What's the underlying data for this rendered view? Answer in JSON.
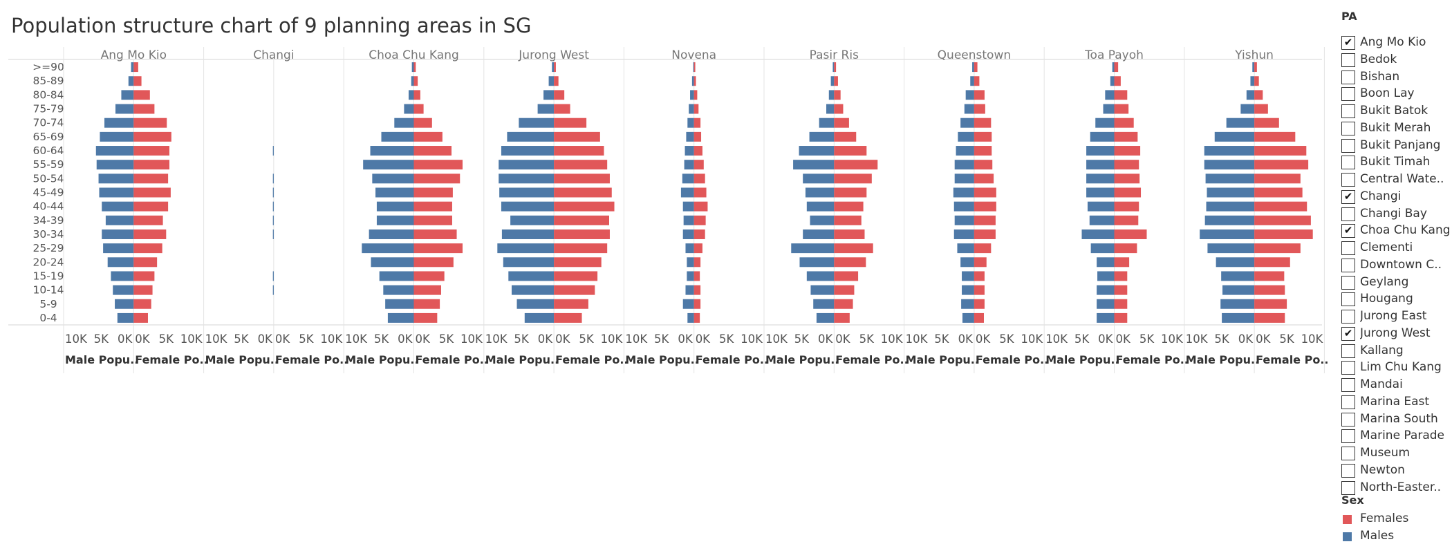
{
  "title": "Population structure chart of 9 planning areas in SG",
  "colors": {
    "male": "#4e79a7",
    "female": "#e15759"
  },
  "chart_data": {
    "type": "bar",
    "subtype": "population-pyramid",
    "title": "Population structure chart of 9 planning areas in SG",
    "age_groups": [
      ">=90",
      "85-89",
      "80-84",
      "75-79",
      "70-74",
      "65-69",
      "60-64",
      "55-59",
      "50-54",
      "45-49",
      "40-44",
      "34-39",
      "30-34",
      "25-29",
      "20-24",
      "15-19",
      "10-14",
      "5-9",
      "0-4"
    ],
    "x_ticks": [
      "10K",
      "5K",
      "0K"
    ],
    "x_ticks_right": [
      "0K",
      "5K",
      "10K"
    ],
    "xlim": [
      0,
      10000
    ],
    "male_axis_label": "Male Popu..",
    "female_axis_label": "Female Po..",
    "grid": false,
    "legend_placement": "right",
    "panels": [
      {
        "area": "Ang Mo Kio",
        "male": [
          400,
          800,
          1900,
          2800,
          4500,
          5200,
          5800,
          5700,
          5400,
          5300,
          4900,
          4300,
          4900,
          4700,
          4000,
          3500,
          3200,
          2900,
          2500
        ],
        "female": [
          700,
          1200,
          2500,
          3200,
          5100,
          5800,
          5500,
          5500,
          5300,
          5700,
          5300,
          4500,
          5000,
          4400,
          3600,
          3200,
          2900,
          2700,
          2200
        ]
      },
      {
        "area": "Changi",
        "male": [
          0,
          0,
          0,
          0,
          0,
          0,
          120,
          0,
          100,
          100,
          100,
          100,
          100,
          0,
          0,
          100,
          100,
          0,
          0
        ],
        "female": [
          0,
          0,
          0,
          0,
          0,
          0,
          0,
          0,
          0,
          0,
          0,
          0,
          0,
          0,
          0,
          0,
          0,
          0,
          0
        ]
      },
      {
        "area": "Choa Chu Kang",
        "male": [
          300,
          400,
          800,
          1500,
          3000,
          5000,
          6700,
          7800,
          6400,
          5900,
          5700,
          5700,
          6900,
          8000,
          6600,
          5300,
          4700,
          4400,
          4000
        ],
        "female": [
          300,
          600,
          1000,
          1500,
          2800,
          4400,
          5800,
          7500,
          7100,
          6000,
          5900,
          5900,
          6600,
          7500,
          6100,
          4700,
          4200,
          4000,
          3600
        ]
      },
      {
        "area": "Jurong West",
        "male": [
          300,
          800,
          1600,
          2500,
          5400,
          7200,
          8100,
          8500,
          8500,
          8400,
          8100,
          6700,
          8000,
          8700,
          7800,
          7000,
          6500,
          5700,
          4500
        ],
        "female": [
          300,
          700,
          1600,
          2500,
          5000,
          7100,
          7700,
          8200,
          8600,
          8900,
          9300,
          8500,
          8600,
          8200,
          7300,
          6700,
          6300,
          5300,
          4300
        ]
      },
      {
        "area": "Novena",
        "male": [
          100,
          300,
          600,
          800,
          1000,
          1200,
          1400,
          1500,
          1800,
          2000,
          1700,
          1600,
          1700,
          1300,
          1100,
          1100,
          1300,
          1700,
          1000
        ],
        "female": [
          200,
          300,
          500,
          700,
          1000,
          1100,
          1300,
          1500,
          1700,
          1900,
          2100,
          1800,
          1700,
          1300,
          1000,
          900,
          1000,
          1000,
          900
        ]
      },
      {
        "area": "Pasir Ris",
        "male": [
          200,
          500,
          800,
          1200,
          2300,
          3800,
          5400,
          6300,
          4800,
          4400,
          4200,
          3700,
          4800,
          6600,
          5300,
          4200,
          3600,
          3200,
          2700
        ],
        "female": [
          300,
          600,
          1000,
          1400,
          2300,
          3400,
          5000,
          6700,
          5800,
          5000,
          4500,
          4200,
          4700,
          6000,
          4900,
          3700,
          3100,
          2900,
          2400
        ]
      },
      {
        "area": "Queenstown",
        "male": [
          300,
          600,
          1300,
          1500,
          2100,
          2500,
          2800,
          3000,
          3000,
          3200,
          3100,
          3000,
          3100,
          2600,
          2100,
          1900,
          1900,
          2000,
          1800
        ],
        "female": [
          500,
          800,
          1600,
          1700,
          2600,
          2700,
          2700,
          2800,
          3000,
          3400,
          3400,
          3300,
          3300,
          2600,
          1900,
          1600,
          1600,
          1600,
          1500
        ]
      },
      {
        "area": "Toa Payoh",
        "male": [
          300,
          600,
          1400,
          1700,
          2900,
          3700,
          4300,
          4300,
          4300,
          4300,
          4100,
          3800,
          5000,
          3600,
          2700,
          2600,
          2700,
          2700,
          2700
        ],
        "female": [
          600,
          1000,
          2000,
          2200,
          3000,
          3600,
          4000,
          3800,
          3900,
          4100,
          3800,
          3700,
          5000,
          3500,
          2300,
          2000,
          2000,
          2000,
          2000
        ]
      },
      {
        "area": "Yishun",
        "male": [
          300,
          600,
          1200,
          2100,
          4300,
          6100,
          7700,
          7700,
          7500,
          7300,
          7400,
          7600,
          8400,
          7200,
          5900,
          5100,
          4900,
          5200,
          5000
        ],
        "female": [
          400,
          700,
          1300,
          2100,
          3800,
          6300,
          8000,
          8300,
          7100,
          7400,
          8100,
          8700,
          9000,
          7100,
          5500,
          4600,
          4700,
          5000,
          4700
        ]
      }
    ]
  },
  "legend": {
    "pa_title": "PA",
    "pa_items": [
      {
        "label": "Ang Mo Kio",
        "checked": true
      },
      {
        "label": "Bedok",
        "checked": false
      },
      {
        "label": "Bishan",
        "checked": false
      },
      {
        "label": "Boon Lay",
        "checked": false
      },
      {
        "label": "Bukit Batok",
        "checked": false
      },
      {
        "label": "Bukit Merah",
        "checked": false
      },
      {
        "label": "Bukit Panjang",
        "checked": false
      },
      {
        "label": "Bukit Timah",
        "checked": false
      },
      {
        "label": "Central Wate..",
        "checked": false
      },
      {
        "label": "Changi",
        "checked": true
      },
      {
        "label": "Changi Bay",
        "checked": false
      },
      {
        "label": "Choa Chu Kang",
        "checked": true
      },
      {
        "label": "Clementi",
        "checked": false
      },
      {
        "label": "Downtown C..",
        "checked": false
      },
      {
        "label": "Geylang",
        "checked": false
      },
      {
        "label": "Hougang",
        "checked": false
      },
      {
        "label": "Jurong East",
        "checked": false
      },
      {
        "label": "Jurong West",
        "checked": true
      },
      {
        "label": "Kallang",
        "checked": false
      },
      {
        "label": "Lim Chu Kang",
        "checked": false
      },
      {
        "label": "Mandai",
        "checked": false
      },
      {
        "label": "Marina East",
        "checked": false
      },
      {
        "label": "Marina South",
        "checked": false
      },
      {
        "label": "Marine Parade",
        "checked": false
      },
      {
        "label": "Museum",
        "checked": false
      },
      {
        "label": "Newton",
        "checked": false
      },
      {
        "label": "North-Easter..",
        "checked": false
      }
    ],
    "sex_title": "Sex",
    "sex_items": [
      {
        "label": "Females",
        "color": "#e15759"
      },
      {
        "label": "Males",
        "color": "#4e79a7"
      }
    ]
  }
}
